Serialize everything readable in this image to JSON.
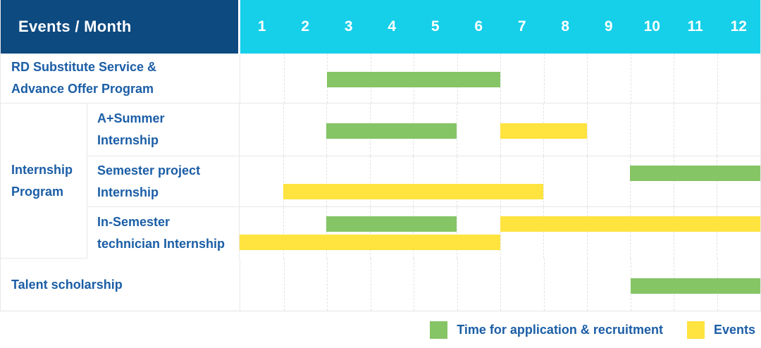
{
  "header": {
    "title": "Events / Month",
    "months": [
      "1",
      "2",
      "3",
      "4",
      "5",
      "6",
      "7",
      "8",
      "9",
      "10",
      "11",
      "12"
    ]
  },
  "rows": {
    "rd": {
      "label": "RD Substitute Service &\nAdvance Offer Program"
    },
    "internship_group": {
      "label": "Internship\nProgram",
      "subrows": [
        {
          "label": "A+Summer\nInternship"
        },
        {
          "label": "Semester project\nInternship"
        },
        {
          "label": "In-Semester\ntechnician Internship"
        }
      ]
    },
    "talent": {
      "label": "Talent scholarship"
    }
  },
  "legend": {
    "items": [
      {
        "series": "application",
        "label": "Time for application & recruitment",
        "color": "#85c565"
      },
      {
        "series": "events",
        "label": "Events",
        "color": "#ffe33f"
      }
    ]
  },
  "colors": {
    "header_navy": "#0d4a80",
    "header_cyan": "#16cfe9",
    "label_blue": "#1b5ea6",
    "bar_green": "#85c565",
    "bar_yellow": "#ffe33f",
    "grid_line": "#e8e8e8"
  },
  "chart_data": {
    "type": "gantt",
    "x_unit": "month",
    "x_range": [
      1,
      12
    ],
    "row_labels": [
      "RD Substitute Service & Advance Offer Program",
      "A+Summer Internship",
      "Semester project Internship",
      "In-Semester technician Internship",
      "Talent scholarship"
    ],
    "series_legend": {
      "application": "Time for application & recruitment",
      "events": "Events"
    },
    "bars": [
      {
        "row": 0,
        "line": 0,
        "series": "application",
        "start": 3,
        "end": 6
      },
      {
        "row": 1,
        "line": 0,
        "series": "application",
        "start": 3,
        "end": 5
      },
      {
        "row": 1,
        "line": 0,
        "series": "events",
        "start": 7,
        "end": 8
      },
      {
        "row": 2,
        "line": 0,
        "series": "application",
        "start": 10,
        "end": 12
      },
      {
        "row": 2,
        "line": 1,
        "series": "events",
        "start": 2,
        "end": 7
      },
      {
        "row": 3,
        "line": 0,
        "series": "application",
        "start": 3,
        "end": 5
      },
      {
        "row": 3,
        "line": 0,
        "series": "events",
        "start": 7,
        "end": 12
      },
      {
        "row": 3,
        "line": 1,
        "series": "events",
        "start": 1,
        "end": 6
      },
      {
        "row": 4,
        "line": 0,
        "series": "application",
        "start": 10,
        "end": 12
      }
    ]
  }
}
